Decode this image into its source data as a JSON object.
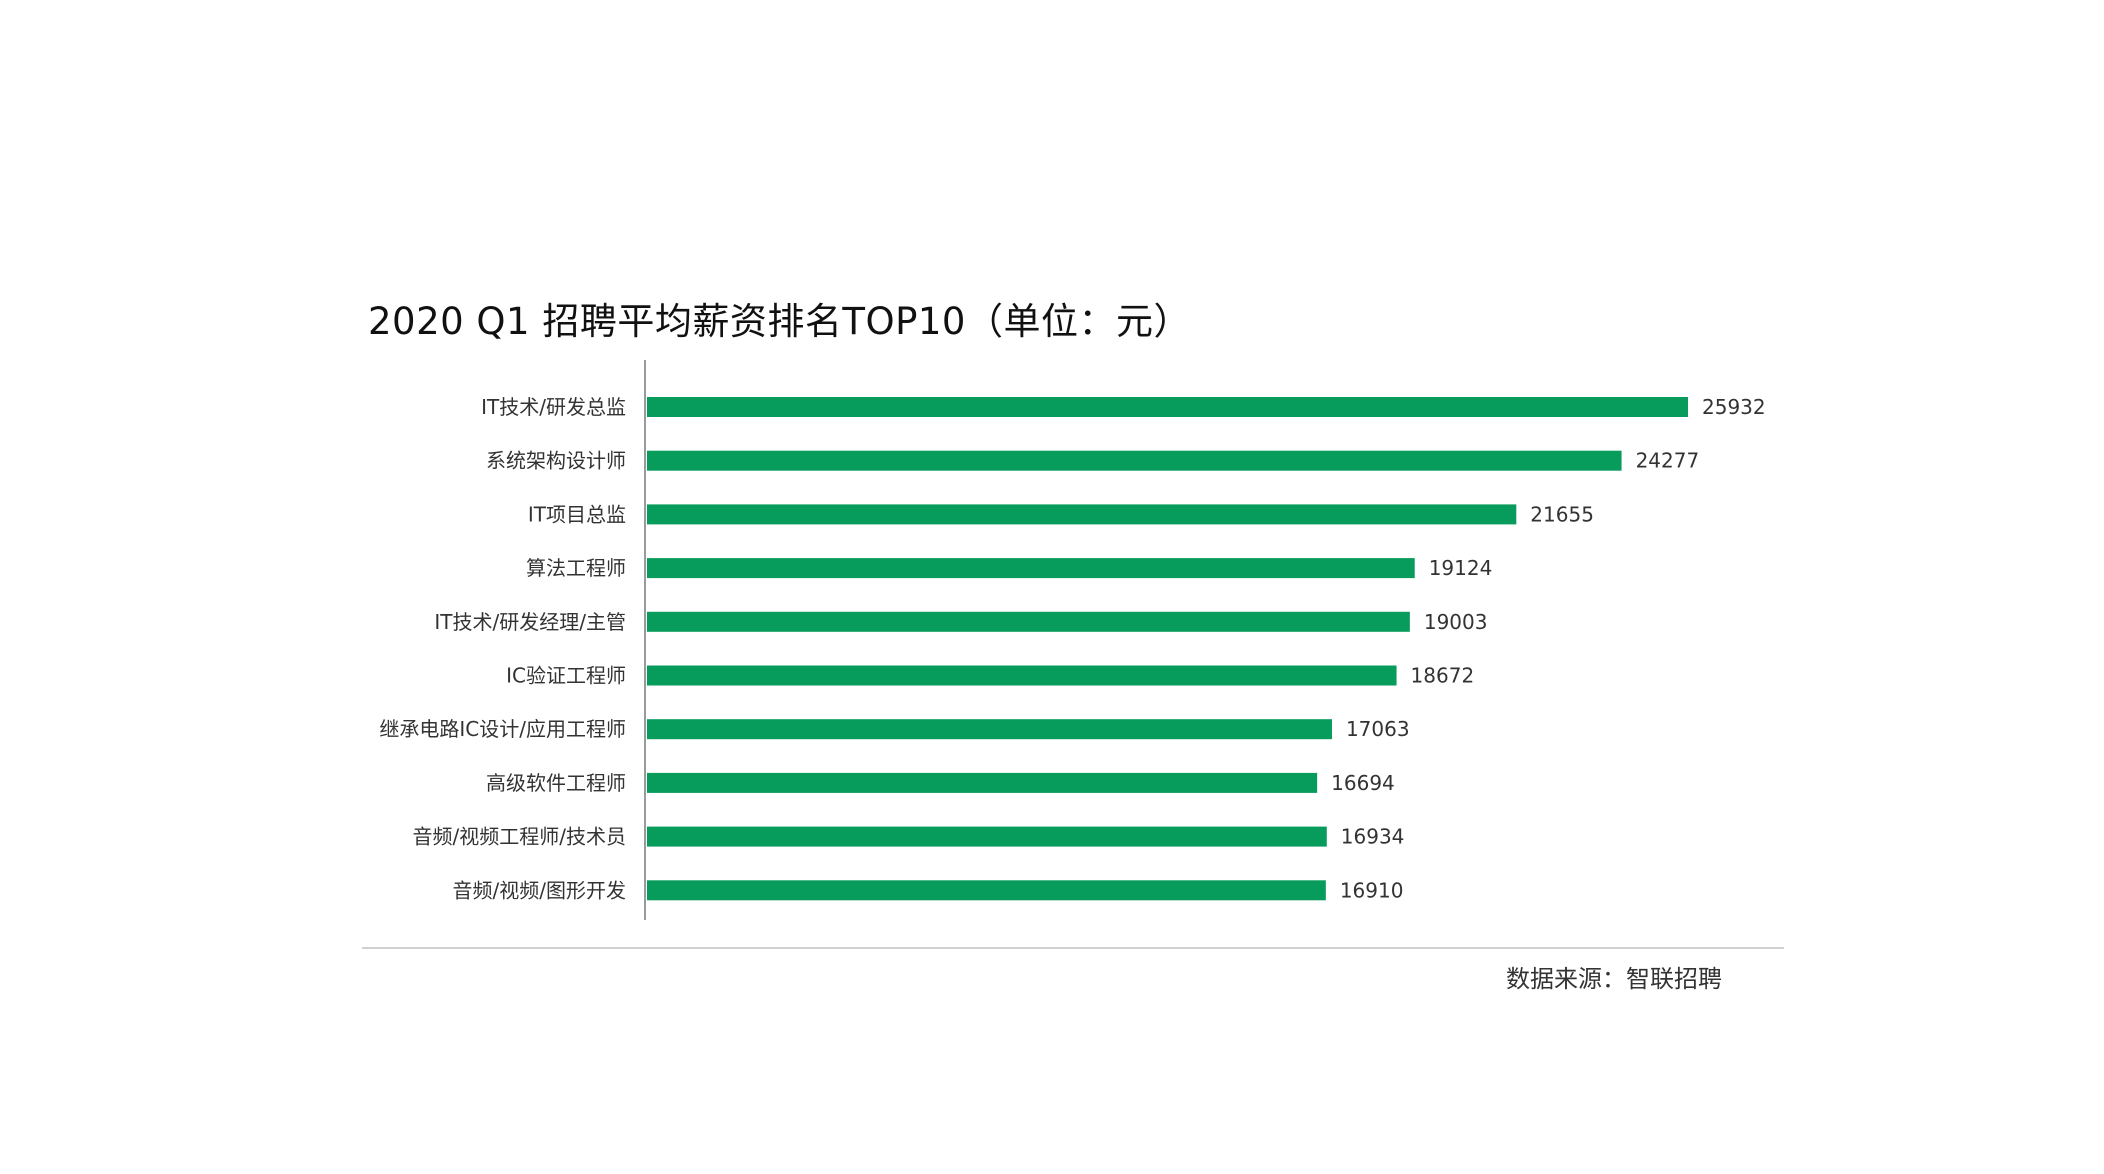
{
  "chart_data": {
    "type": "bar",
    "orientation": "horizontal",
    "title": "2020 Q1 招聘平均薪资排名TOP10（单位：元）",
    "categories": [
      "IT技术/研发总监",
      "系统架构设计师",
      "IT项目总监",
      "算法工程师",
      "IT技术/研发经理/主管",
      "IC验证工程师",
      "继承电路IC设计/应用工程师",
      "高级软件工程师",
      "音频/视频工程师/技术员",
      "音频/视频/图形开发"
    ],
    "values": [
      25932,
      24277,
      21655,
      19124,
      19003,
      18672,
      17063,
      16694,
      16934,
      16910
    ],
    "value_labels": [
      "25932",
      "24277",
      "21655",
      "19124",
      "19003",
      "18672",
      "17063",
      "16694",
      "16934",
      "16910"
    ],
    "bar_color": "#079b5c",
    "xlabel": "",
    "ylabel": "",
    "grid": false,
    "legend": "none"
  },
  "source": "数据来源：智联招聘",
  "colors": {
    "bar": "#079b5c",
    "axis": "#9a9a9a",
    "baseline": "#d0d0d0",
    "text": "#333333"
  }
}
